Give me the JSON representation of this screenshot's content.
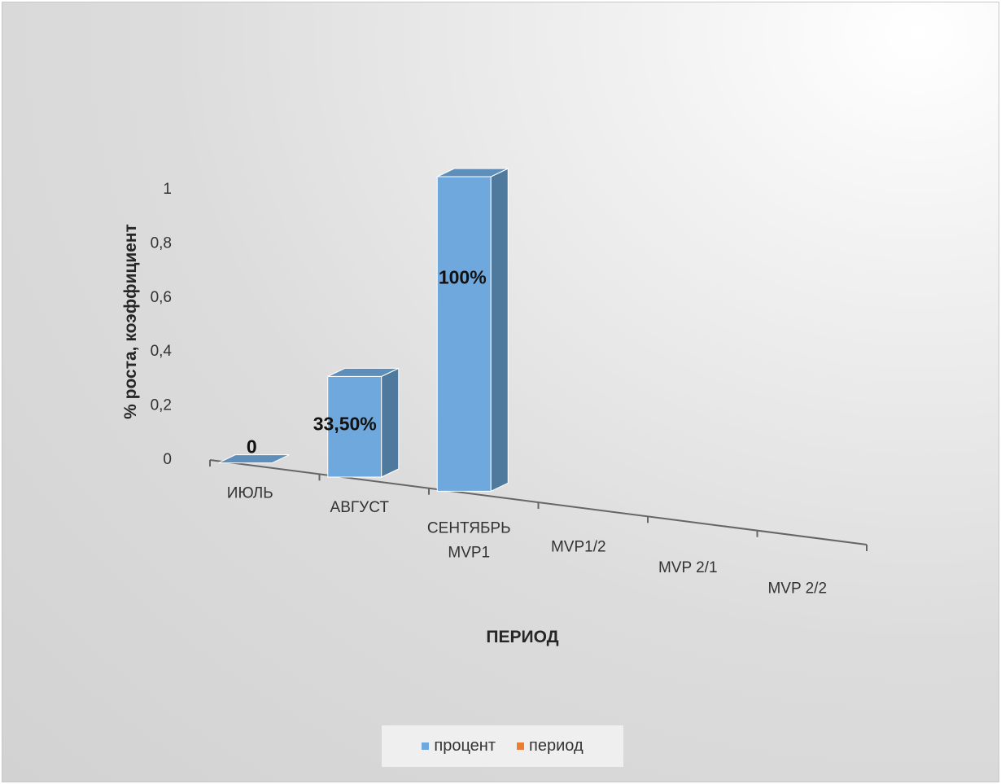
{
  "chart_data": {
    "type": "bar",
    "title": "",
    "xlabel": "ПЕРИОД",
    "ylabel": "% роста, коэффициент",
    "ylim": [
      0,
      1
    ],
    "y_ticks": [
      "0",
      "0,2",
      "0,4",
      "0,6",
      "0,8",
      "1"
    ],
    "categories": [
      "ИЮЛЬ",
      "АВГУСТ",
      "СЕНТЯБРЬ MVP1",
      "MVP1/2",
      "MVP 2/1",
      "MVP 2/2"
    ],
    "category_lines": [
      [
        "ИЮЛЬ"
      ],
      [
        "АВГУСТ"
      ],
      [
        "СЕНТЯБРЬ",
        "MVP1"
      ],
      [
        "MVP1/2"
      ],
      [
        "MVP 2/1"
      ],
      [
        "MVP 2/2"
      ]
    ],
    "series": [
      {
        "name": "процент",
        "color": "#6fa8dc",
        "values": [
          0,
          0.335,
          1,
          null,
          null,
          null
        ],
        "data_labels": [
          "0",
          "33,50%",
          "100%",
          "",
          "",
          ""
        ]
      },
      {
        "name": "период",
        "color": "#ed7d31",
        "values": [
          null,
          null,
          null,
          null,
          null,
          null
        ]
      }
    ],
    "legend_position": "bottom",
    "grid": false,
    "style": "3d-column"
  }
}
